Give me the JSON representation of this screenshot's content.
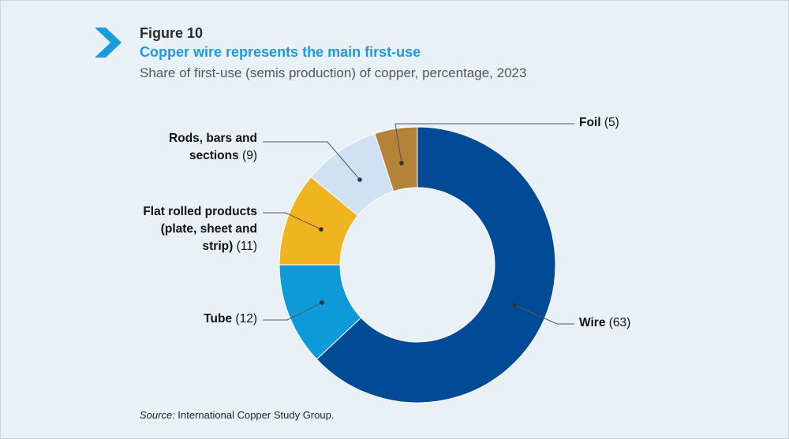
{
  "figure": {
    "label": "Figure 10",
    "title": "Copper wire represents the main first-use",
    "subtitle": "Share of first-use (semis production) of copper, percentage, 2023"
  },
  "source": {
    "prefix": "Source:",
    "text": " International Copper Study Group."
  },
  "chart_data": {
    "type": "pie",
    "variant": "donut",
    "start": "top, clockwise",
    "slices": [
      {
        "label_lines": [
          "",
          ""
        ],
        "name": "Wire",
        "value": 63,
        "value_text": "(63)",
        "color": "#004a96"
      },
      {
        "name": "Tube",
        "value": 12,
        "value_text": "(12)",
        "color": "#0e9ad8"
      },
      {
        "name_lines": [
          "Flat rolled products",
          "(plate, sheet and",
          "strip)"
        ],
        "value": 11,
        "value_text": "(11)",
        "color": "#efb41f"
      },
      {
        "name_lines": [
          "Rods, bars and",
          "sections"
        ],
        "value": 9,
        "value_text": "(9)",
        "color": "#cfe1f3"
      },
      {
        "name": "Foil",
        "value": 5,
        "value_text": "(5)",
        "color": "#b5823a"
      }
    ]
  },
  "colors": {
    "accent": "#1a9be0",
    "chevron": "#1a9be0"
  }
}
